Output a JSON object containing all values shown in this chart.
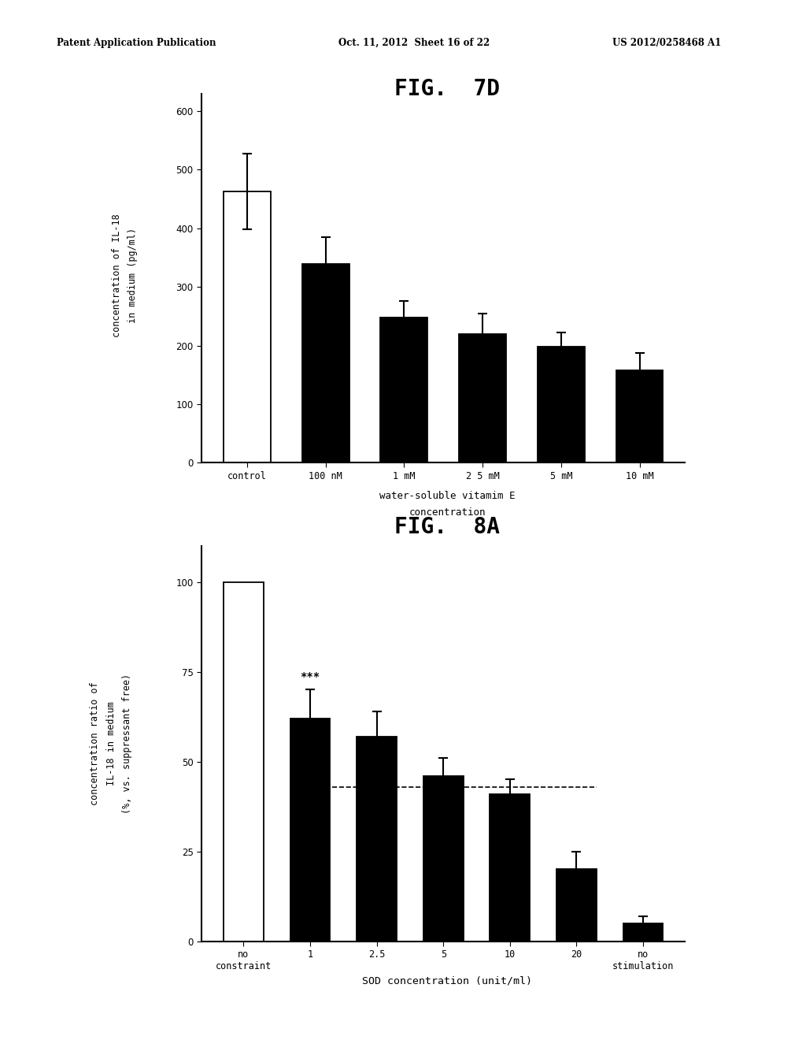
{
  "fig7d": {
    "title": "FIG.  7D",
    "tick_labels": [
      "control",
      "100 nM",
      "1 mM",
      "2 5 mM",
      "5 mM",
      "10 mM"
    ],
    "values": [
      463,
      340,
      248,
      220,
      198,
      158
    ],
    "errors": [
      65,
      45,
      28,
      35,
      25,
      30
    ],
    "bar_colors": [
      "white",
      "black",
      "black",
      "black",
      "black",
      "black"
    ],
    "bar_edgecolors": [
      "black",
      "black",
      "black",
      "black",
      "black",
      "black"
    ],
    "ylabel_line1": "concentration of IL-18",
    "ylabel_line2": "in medium (pg/ml)",
    "xlabel_line1": "water-soluble vitamim E",
    "xlabel_line2": "concentration",
    "ylim": [
      0,
      630
    ],
    "yticks": [
      0,
      100,
      200,
      300,
      400,
      500,
      600
    ]
  },
  "fig8a": {
    "title": "FIG.  8A",
    "tick_labels": [
      "no\nconstraint",
      "1",
      "2.5",
      "5",
      "10",
      "20",
      "no\nstimulation"
    ],
    "values": [
      100,
      62,
      57,
      46,
      41,
      20,
      5
    ],
    "errors": [
      0,
      8,
      7,
      5,
      4,
      5,
      2
    ],
    "bar_colors": [
      "white",
      "black",
      "black",
      "black",
      "black",
      "black",
      "black"
    ],
    "bar_edgecolors": [
      "black",
      "black",
      "black",
      "black",
      "black",
      "black",
      "black"
    ],
    "ylabel_line1": "concentration ratio of",
    "ylabel_line2": "IL-18 in medium",
    "ylabel_line3": "(%, vs. suppressant free)",
    "xlabel": "SOD concentration (unit/ml)",
    "ylim": [
      0,
      110
    ],
    "yticks": [
      0,
      25,
      50,
      75,
      100
    ],
    "annotation_text": "***",
    "annotation_bar_idx": 1,
    "dashed_line_y": 43
  },
  "header_left": "Patent Application Publication",
  "header_mid": "Oct. 11, 2012  Sheet 16 of 22",
  "header_right": "US 2012/0258468 A1",
  "background_color": "#ffffff",
  "text_color": "#000000"
}
